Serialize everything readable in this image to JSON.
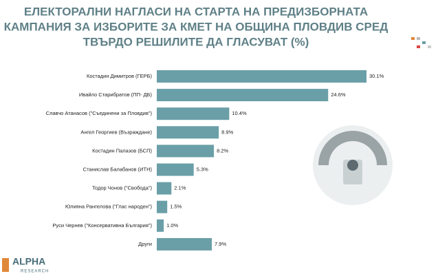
{
  "chart_data": {
    "type": "bar",
    "orientation": "horizontal",
    "title": [
      "ЕЛЕКТОРАЛНИ НАГЛАСИ НА СТАРТА НА ПРЕДИЗБОРНАТА",
      "КАМПАНИЯ ЗА ИЗБОРИТЕ ЗА КМЕТ НА ОБЩИНА ПЛОВДИВ СРЕД",
      "ТВЪРДО РЕШИЛИТЕ ДА ГЛАСУВАТ (%)"
    ],
    "categories": [
      "Костадин Димитров (ГЕРБ)",
      "Ивайло Старибратов (ПП- ДБ)",
      "Славчо Атанасов (\"Съединени за Пловдив\")",
      "Ангел Георгиев (Възраждане)",
      "Костадин Палазов (БСП)",
      "Станислав Балабанов (ИТН)",
      "Тодор Чонов (\"Свобода\")",
      "Юлияна Рангелова (\"Глас народен\")",
      "Руси Чернев (\"Консервативна България\")",
      "Други"
    ],
    "values": [
      30.1,
      24.6,
      10.4,
      8.9,
      8.2,
      5.3,
      2.1,
      1.5,
      1.0,
      7.9
    ],
    "value_labels": [
      "30.1%",
      "24.6%",
      "10.4%",
      "8.9%",
      "8.2%",
      "5.3%",
      "2.1%",
      "1.5%",
      "1.0%",
      "7.9%"
    ],
    "color": "#6a9fa7"
  },
  "logo": {
    "name": "ALPHA",
    "sub": "RESEARCH"
  }
}
